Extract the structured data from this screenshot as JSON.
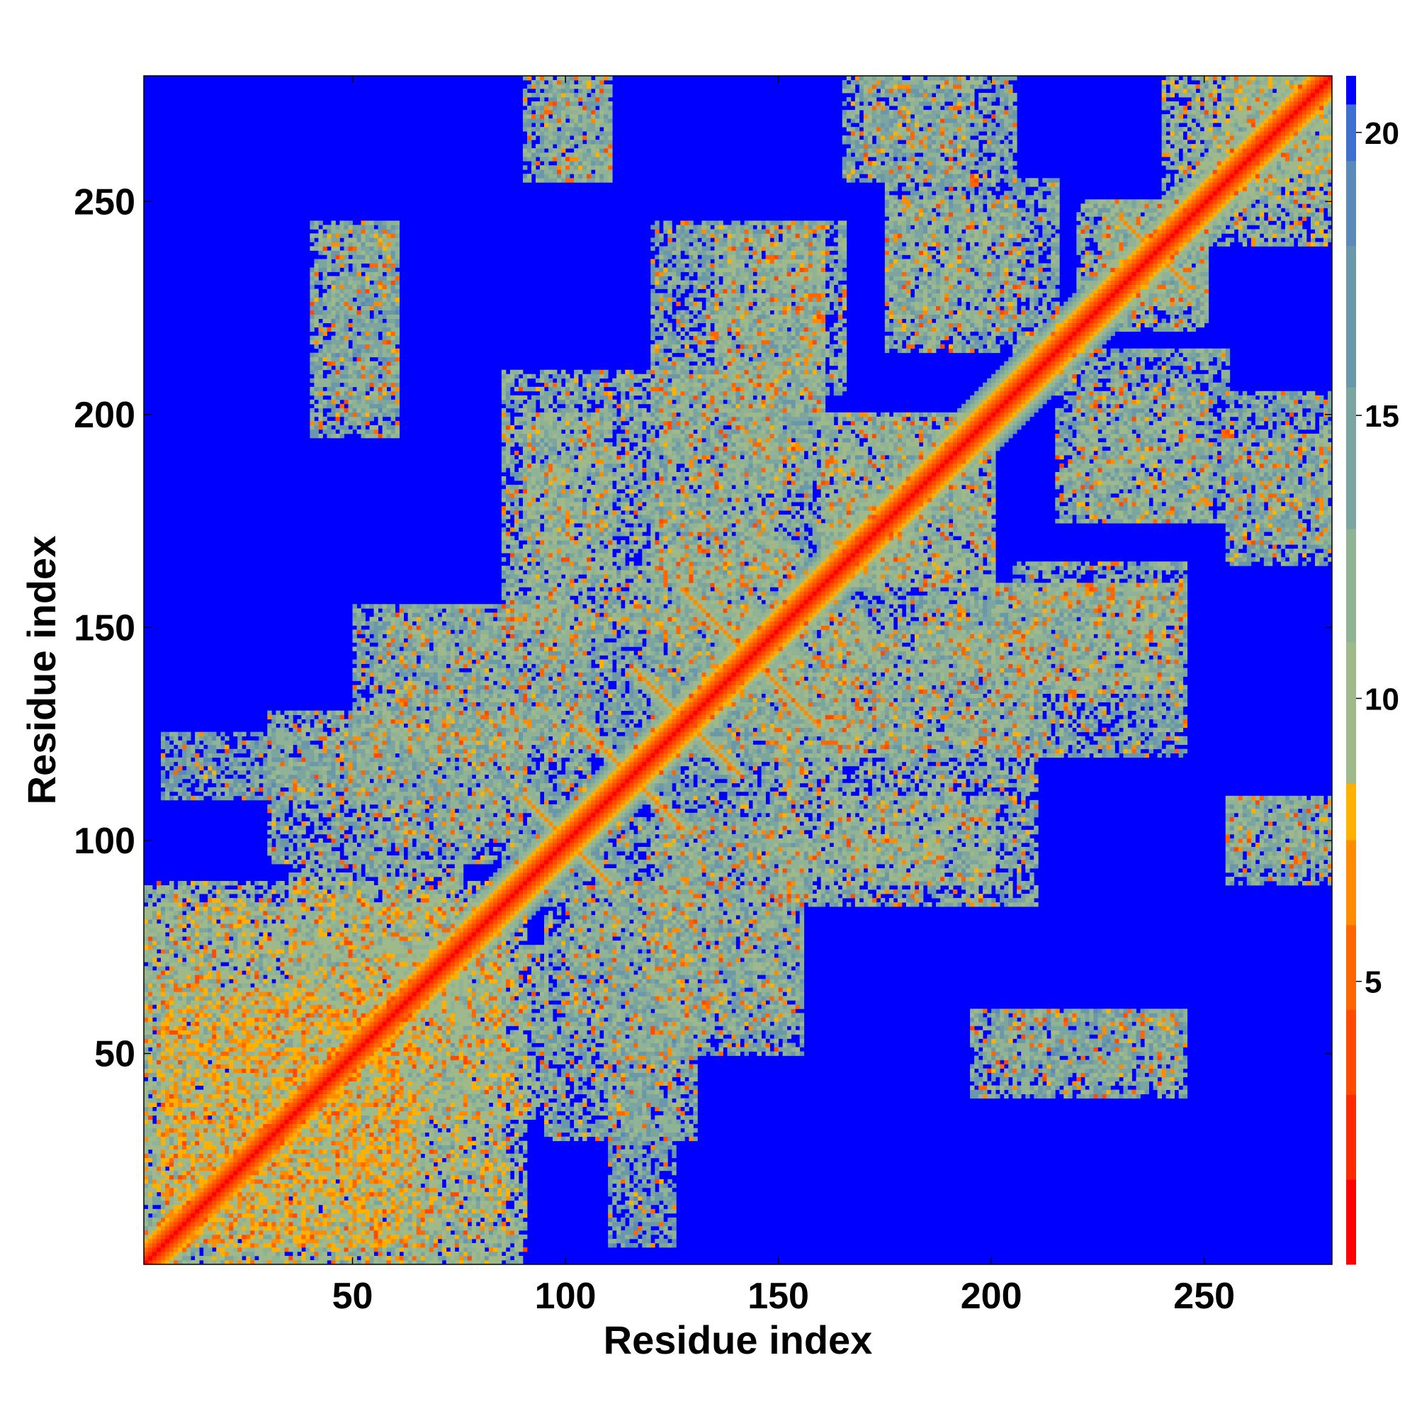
{
  "chart_data": {
    "type": "heatmap",
    "title": "",
    "xlabel": "Residue index",
    "ylabel": "Residue index",
    "xlim": [
      1,
      279
    ],
    "ylim": [
      1,
      279
    ],
    "xticks": [
      50,
      100,
      150,
      200,
      250
    ],
    "yticks": [
      50,
      100,
      150,
      200,
      250
    ],
    "colorbar": {
      "range": [
        0,
        21
      ],
      "ticks": [
        5,
        10,
        15,
        20
      ],
      "levels": [
        {
          "from": 0,
          "to": 1.5,
          "color": "#ff0000"
        },
        {
          "from": 1.5,
          "to": 3,
          "color": "#ff2a00"
        },
        {
          "from": 3,
          "to": 4.5,
          "color": "#ff4a00"
        },
        {
          "from": 4.5,
          "to": 6,
          "color": "#ff6600"
        },
        {
          "from": 6,
          "to": 7.5,
          "color": "#ff8c00"
        },
        {
          "from": 7.5,
          "to": 8.5,
          "color": "#ffb000"
        },
        {
          "from": 8.5,
          "to": 11,
          "color": "#9fb98a"
        },
        {
          "from": 11,
          "to": 13,
          "color": "#8fb394"
        },
        {
          "from": 13,
          "to": 15.5,
          "color": "#7ba59e"
        },
        {
          "from": 15.5,
          "to": 18,
          "color": "#6a98aa"
        },
        {
          "from": 18,
          "to": 19.5,
          "color": "#5b89b8"
        },
        {
          "from": 19.5,
          "to": 20.5,
          "color": "#3f6fd0"
        },
        {
          "from": 20.5,
          "to": 21,
          "color": "#0000ff"
        }
      ]
    },
    "background_value": 21,
    "diagonal": {
      "from": 1,
      "to": 279
    },
    "contact_regions": [
      {
        "x": [
          1,
          85
        ],
        "y": [
          1,
          90
        ],
        "value": 12
      },
      {
        "x": [
          5,
          65
        ],
        "y": [
          5,
          60
        ],
        "value": 11
      },
      {
        "x": [
          45,
          95
        ],
        "y": [
          35,
          75
        ],
        "value": 13
      },
      {
        "x": [
          55,
          105
        ],
        "y": [
          100,
          155
        ],
        "value": 14
      },
      {
        "x": [
          5,
          55
        ],
        "y": [
          110,
          125
        ],
        "value": 15
      },
      {
        "x": [
          40,
          60
        ],
        "y": [
          195,
          245
        ],
        "value": 14
      },
      {
        "x": [
          90,
          110
        ],
        "y": [
          160,
          200
        ],
        "value": 13
      },
      {
        "x": [
          90,
          110
        ],
        "y": [
          255,
          280
        ],
        "value": 14
      },
      {
        "x": [
          95,
          130
        ],
        "y": [
          30,
          90
        ],
        "value": 14
      },
      {
        "x": [
          120,
          155
        ],
        "y": [
          50,
          170
        ],
        "value": 14
      },
      {
        "x": [
          120,
          160
        ],
        "y": [
          160,
          245
        ],
        "value": 14
      },
      {
        "x": [
          135,
          165
        ],
        "y": [
          205,
          245
        ],
        "value": 13
      },
      {
        "x": [
          150,
          210
        ],
        "y": [
          85,
          150
        ],
        "value": 13
      },
      {
        "x": [
          160,
          200
        ],
        "y": [
          160,
          200
        ],
        "value": 13
      },
      {
        "x": [
          170,
          205
        ],
        "y": [
          255,
          280
        ],
        "value": 14
      },
      {
        "x": [
          175,
          215
        ],
        "y": [
          215,
          255
        ],
        "value": 14
      },
      {
        "x": [
          185,
          240
        ],
        "y": [
          145,
          160
        ],
        "value": 14
      },
      {
        "x": [
          200,
          230
        ],
        "y": [
          45,
          60
        ],
        "value": 15
      },
      {
        "x": [
          230,
          245
        ],
        "y": [
          45,
          60
        ],
        "value": 14
      },
      {
        "x": [
          220,
          250
        ],
        "y": [
          175,
          205
        ],
        "value": 13
      },
      {
        "x": [
          220,
          250
        ],
        "y": [
          225,
          250
        ],
        "value": 13
      },
      {
        "x": [
          255,
          279
        ],
        "y": [
          165,
          195
        ],
        "value": 14
      },
      {
        "x": [
          255,
          279
        ],
        "y": [
          95,
          110
        ],
        "value": 14
      },
      {
        "x": [
          240,
          279
        ],
        "y": [
          250,
          279
        ],
        "value": 12
      }
    ],
    "crossing_strands": [
      {
        "center": [
          100,
          100
        ],
        "half_length": 10,
        "value": 6
      },
      {
        "center": [
          115,
          115
        ],
        "half_length": 12,
        "value": 6
      },
      {
        "center": [
          128,
          128
        ],
        "half_length": 12,
        "value": 6
      },
      {
        "center": [
          143,
          143
        ],
        "half_length": 16,
        "value": 6
      },
      {
        "center": [
          238,
          238
        ],
        "half_length": 8,
        "value": 7
      }
    ]
  }
}
